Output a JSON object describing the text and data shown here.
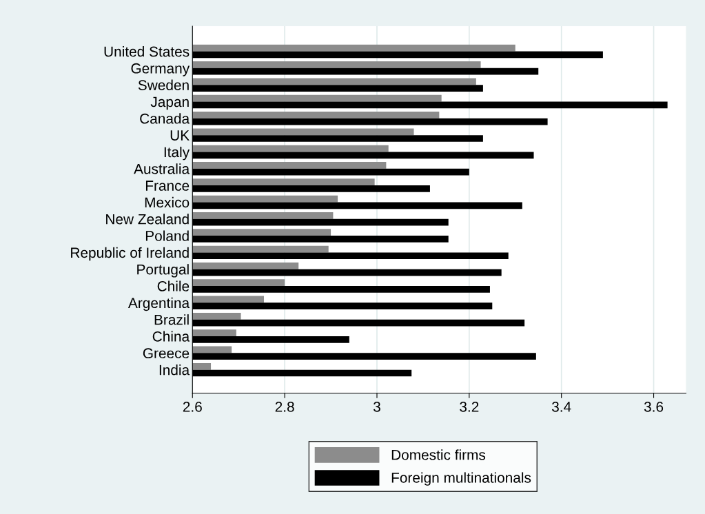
{
  "chart_data": {
    "type": "bar",
    "orientation": "horizontal",
    "categories": [
      "United States",
      "Germany",
      "Sweden",
      "Japan",
      "Canada",
      "UK",
      "Italy",
      "Australia",
      "France",
      "Mexico",
      "New Zealand",
      "Poland",
      "Republic of Ireland",
      "Portugal",
      "Chile",
      "Argentina",
      "Brazil",
      "China",
      "Greece",
      "India"
    ],
    "series": [
      {
        "name": "Domestic firms",
        "color": "#8c8c8c",
        "values": [
          3.3,
          3.225,
          3.215,
          3.14,
          3.135,
          3.08,
          3.025,
          3.02,
          2.995,
          2.915,
          2.905,
          2.9,
          2.895,
          2.83,
          2.8,
          2.755,
          2.705,
          2.695,
          2.685,
          2.64
        ]
      },
      {
        "name": "Foreign multinationals",
        "color": "#000000",
        "values": [
          3.49,
          3.35,
          3.23,
          3.63,
          3.37,
          3.23,
          3.34,
          3.2,
          3.115,
          3.315,
          3.155,
          3.155,
          3.285,
          3.27,
          3.245,
          3.25,
          3.32,
          2.94,
          3.345,
          3.075
        ]
      }
    ],
    "xlim": [
      2.6,
      3.67
    ],
    "xticks": [
      2.6,
      2.8,
      3,
      3.2,
      3.4,
      3.6
    ],
    "grid": "x",
    "legend": "bottom"
  }
}
